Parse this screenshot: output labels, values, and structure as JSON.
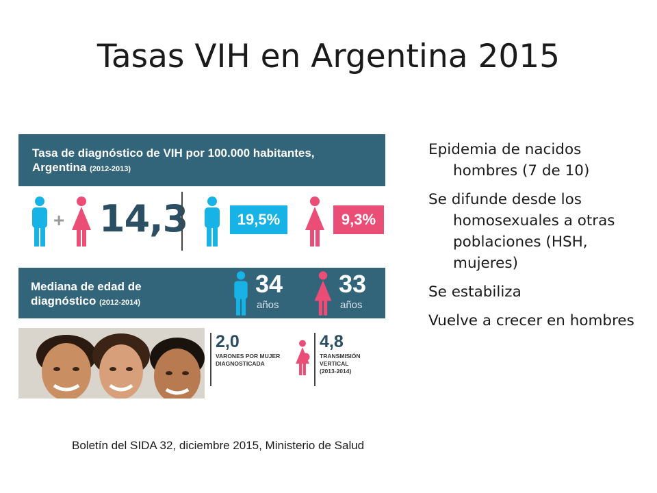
{
  "slide": {
    "title": "Tasas VIH en Argentina 2015"
  },
  "infographic": {
    "band1": {
      "title_line1": "Tasa de diagnóstico de VIH por 100.000 habitantes,",
      "title_line2": "Argentina",
      "period": "(2012-2013)"
    },
    "rates": {
      "total": "14,3",
      "male": "19,5%",
      "female": "9,3%"
    },
    "band2": {
      "title_line1": "Mediana de edad de",
      "title_line2": "diagnóstico",
      "period": "(2012-2014)",
      "male_age": "34",
      "female_age": "33",
      "unit": "años"
    },
    "bottom": {
      "ratio_value": "2,0",
      "ratio_label": "VARONES POR MUJER DIAGNOSTICADA",
      "vertical_value": "4,8",
      "vertical_label": "TRANSMISIÓN VERTICAL",
      "vertical_period": "(2013-2014)"
    },
    "colors": {
      "band": "#32647a",
      "male": "#17b2e6",
      "female": "#ea4d76",
      "dark_text": "#2b4e63"
    }
  },
  "bullets": [
    "Epidemia de nacidos hombres (7 de 10)",
    "Se difunde desde los homosexuales a otras poblaciones (HSH, mujeres)",
    "Se estabiliza",
    "Vuelve a crecer en hombres"
  ],
  "source": "Boletín del SIDA 32, diciembre 2015, Ministerio de Salud"
}
